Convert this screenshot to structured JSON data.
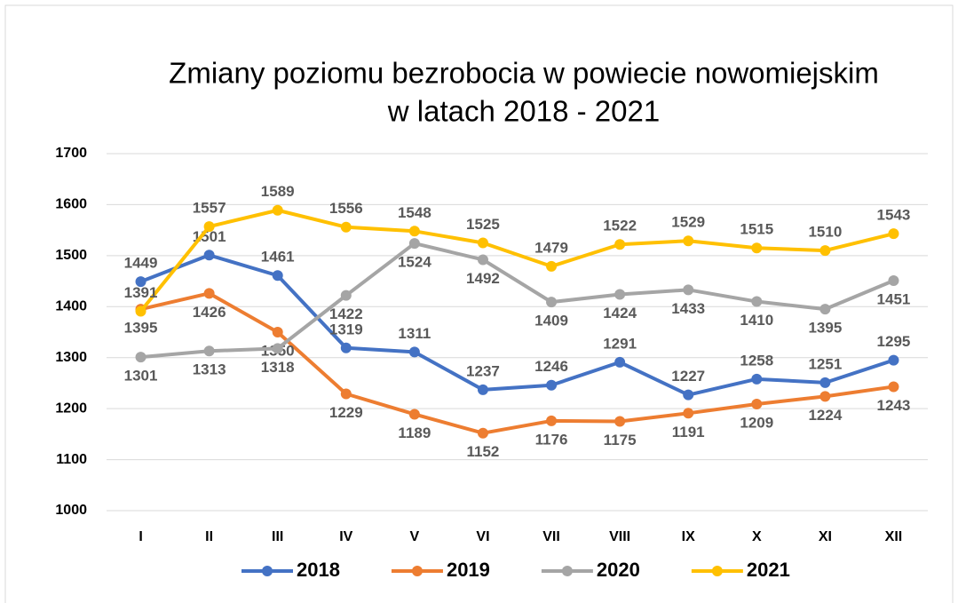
{
  "chart_data": {
    "type": "line",
    "title": [
      "Zmiany poziomu bezrobocia w powiecie nowomiejskim",
      "w latach 2018 - 2021"
    ],
    "categories": [
      "I",
      "II",
      "III",
      "IV",
      "V",
      "VI",
      "VII",
      "VIII",
      "IX",
      "X",
      "XI",
      "XII"
    ],
    "series": [
      {
        "name": "2018",
        "color": "#4472c4",
        "values": [
          1449,
          1501,
          1461,
          1319,
          1311,
          1237,
          1246,
          1291,
          1227,
          1258,
          1251,
          1295
        ]
      },
      {
        "name": "2019",
        "color": "#ed7d31",
        "values": [
          1395,
          1426,
          1350,
          1229,
          1189,
          1152,
          1176,
          1175,
          1191,
          1209,
          1224,
          1243
        ]
      },
      {
        "name": "2020",
        "color": "#a5a5a5",
        "values": [
          1301,
          1313,
          1318,
          1422,
          1524,
          1492,
          1409,
          1424,
          1433,
          1410,
          1395,
          1451
        ]
      },
      {
        "name": "2021",
        "color": "#ffc000",
        "values": [
          1391,
          1557,
          1589,
          1556,
          1548,
          1525,
          1479,
          1522,
          1529,
          1515,
          1510,
          1543
        ]
      }
    ],
    "ylim": [
      1000,
      1700
    ],
    "yticks": [
      1000,
      1100,
      1200,
      1300,
      1400,
      1500,
      1600,
      1700
    ],
    "grid": true,
    "legend": "bottom"
  }
}
